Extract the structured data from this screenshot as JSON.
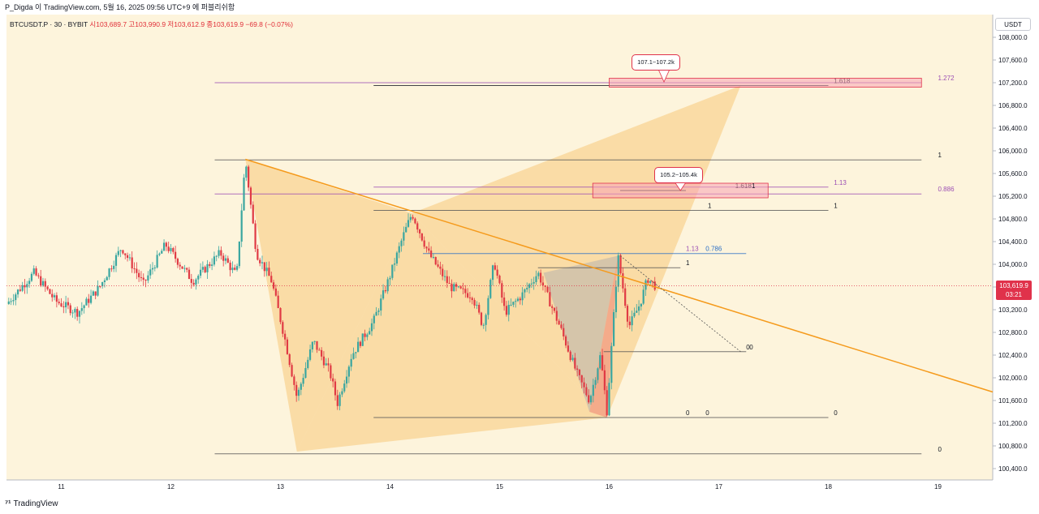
{
  "header": {
    "published_text": "P_Digda 이 TradingView.com, 5월 16, 2025 09:56 UTC+9 에 퍼블리쉬함"
  },
  "legend": {
    "symbol": "BTCUSDT.P · 30 · BYBIT",
    "ohlc": "시103,689.7 고103,990.9 저103,612.9 종103,619.9 −69.8 (−0.07%)"
  },
  "currency_button": "USDT",
  "current_price": {
    "price": "103,619.9",
    "countdown": "03:21",
    "value": 103619.9
  },
  "callouts": [
    {
      "text": "107.1~107.2k"
    },
    {
      "text": "105.2~105.4k"
    }
  ],
  "footer": {
    "brand": "TradingView"
  },
  "colors": {
    "background": "#fdf4dc",
    "bull": "#3aa6a0",
    "bear": "#e03a44",
    "trendline": "#f59a1b",
    "pattern_fill": "#f8c97a",
    "fib_purple": "#9c4fb4",
    "fib_blue": "#2b6fc6",
    "current_price": "#e0324b"
  },
  "chart_data": {
    "type": "candlestick",
    "title": "BTCUSDT.P · 30 · BYBIT",
    "yaxis": {
      "range": [
        100200,
        108400
      ],
      "ticks": [
        "108,000.0",
        "107,600.0",
        "107,200.0",
        "106,800.0",
        "106,400.0",
        "106,000.0",
        "105,600.0",
        "105,200.0",
        "104,800.0",
        "104,400.0",
        "104,000.0",
        "103,600.0",
        "103,200.0",
        "102,800.0",
        "102,400.0",
        "102,000.0",
        "101,600.0",
        "101,200.0",
        "100,800.0",
        "100,400.0"
      ],
      "tick_values": [
        108000,
        107600,
        107200,
        106800,
        106400,
        106000,
        105600,
        105200,
        104800,
        104400,
        104000,
        103600,
        103200,
        102800,
        102400,
        102000,
        101600,
        101200,
        100800,
        100400
      ]
    },
    "xaxis": {
      "range": [
        10.5,
        19.5
      ],
      "ticks": [
        "11",
        "12",
        "13",
        "14",
        "15",
        "16",
        "17",
        "18",
        "19"
      ],
      "tick_values": [
        11,
        12,
        13,
        14,
        15,
        16,
        17,
        18,
        19
      ]
    },
    "price_path": [
      [
        10.5,
        103300
      ],
      [
        10.75,
        103850
      ],
      [
        10.95,
        103350
      ],
      [
        11.15,
        103150
      ],
      [
        11.35,
        103600
      ],
      [
        11.55,
        104300
      ],
      [
        11.75,
        103650
      ],
      [
        11.95,
        104350
      ],
      [
        12.2,
        103700
      ],
      [
        12.45,
        104200
      ],
      [
        12.6,
        103800
      ],
      [
        12.68,
        105850
      ],
      [
        12.78,
        104200
      ],
      [
        12.92,
        103700
      ],
      [
        13.05,
        102600
      ],
      [
        13.15,
        101650
      ],
      [
        13.3,
        102650
      ],
      [
        13.45,
        102100
      ],
      [
        13.52,
        101550
      ],
      [
        13.65,
        102400
      ],
      [
        13.85,
        103000
      ],
      [
        14.0,
        103800
      ],
      [
        14.12,
        104500
      ],
      [
        14.2,
        104900
      ],
      [
        14.35,
        104200
      ],
      [
        14.55,
        103600
      ],
      [
        14.75,
        103450
      ],
      [
        14.85,
        102900
      ],
      [
        14.95,
        104050
      ],
      [
        15.05,
        103150
      ],
      [
        15.2,
        103450
      ],
      [
        15.35,
        103850
      ],
      [
        15.55,
        102900
      ],
      [
        15.7,
        102100
      ],
      [
        15.82,
        101600
      ],
      [
        15.92,
        102400
      ],
      [
        15.98,
        101400
      ],
      [
        16.08,
        104150
      ],
      [
        16.18,
        102900
      ],
      [
        16.28,
        103300
      ],
      [
        16.35,
        103750
      ],
      [
        16.42,
        103620
      ]
    ],
    "trendline": {
      "from": [
        12.68,
        105850
      ],
      "to": [
        19.5,
        101750
      ]
    },
    "harmonic_patterns": [
      {
        "name": "large",
        "points": [
          [
            12.68,
            105850
          ],
          [
            13.15,
            100700
          ],
          [
            14.2,
            104900
          ],
          [
            15.98,
            101300
          ],
          [
            17.2,
            107150
          ]
        ]
      },
      {
        "name": "small",
        "points": [
          [
            15.4,
            103850
          ],
          [
            15.82,
            101400
          ],
          [
            16.08,
            104150
          ],
          [
            15.98,
            101300
          ]
        ]
      }
    ],
    "fib_levels": [
      {
        "value": 107200,
        "label": "1.272",
        "line_color": "#9c4fb4"
      },
      {
        "value": 107150,
        "label": "1.618",
        "line_color": "#131722"
      },
      {
        "value": 105840,
        "label": "1",
        "line_color": "#555555"
      },
      {
        "value": 105360,
        "label": "1.13",
        "line_color": "#9c4fb4"
      },
      {
        "value": 105300,
        "label": "1.618",
        "line_color": "#131722"
      },
      {
        "value": 105240,
        "label": "0.886",
        "line_color": "#9c4fb4"
      },
      {
        "value": 104950,
        "label": "1",
        "line_color": "#555555"
      },
      {
        "value": 104190,
        "label": "0.786",
        "line_color": "#2b6fc6"
      },
      {
        "value": 104190,
        "label": "1.13",
        "line_color": "#9c4fb4"
      },
      {
        "value": 103940,
        "label": "1",
        "line_color": "#555555"
      },
      {
        "value": 102460,
        "label": "0",
        "line_color": "#555555"
      },
      {
        "value": 101300,
        "label": "0",
        "line_color": "#555555"
      },
      {
        "value": 100660,
        "label": "0",
        "line_color": "#555555"
      }
    ],
    "target_zones": [
      {
        "range": [
          107150,
          107250
        ],
        "label": "107.1~107.2k"
      },
      {
        "range": [
          105200,
          105400
        ],
        "label": "105.2~105.4k"
      }
    ]
  }
}
